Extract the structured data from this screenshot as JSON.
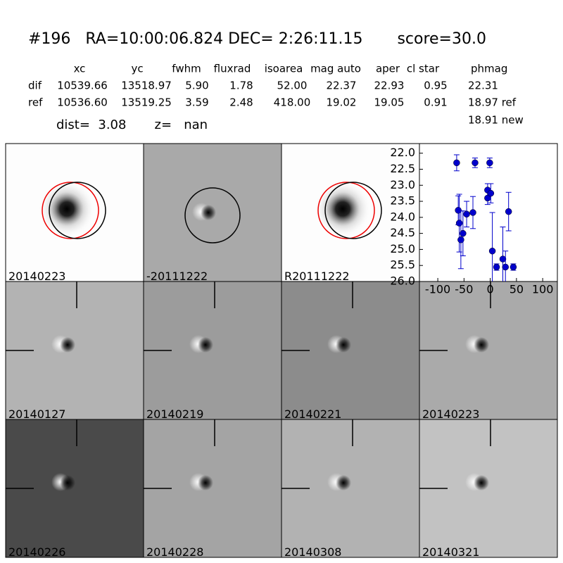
{
  "header": {
    "title": "#196   RA=10:00:06.824 DEC= 2:26:11.15       score=30.0"
  },
  "table": {
    "columns": [
      "xc",
      "yc",
      "fwhm",
      "fluxrad",
      "isoarea",
      "mag auto",
      "aper",
      "cl star",
      "phmag"
    ],
    "rows": [
      [
        "dif",
        "10539.66",
        "13518.97",
        "5.90",
        "1.78",
        "52.00",
        "22.37",
        "22.93",
        "0.95",
        "22.31"
      ],
      [
        "ref",
        "10536.60",
        "13519.25",
        "3.59",
        "2.48",
        "418.00",
        "19.02",
        "19.05",
        "0.91",
        "18.97 ref"
      ]
    ],
    "note": "18.91 new"
  },
  "summary": "dist=  3.08       z=   nan",
  "panels": [
    {
      "label": "20140223"
    },
    {
      "label": "-20111222"
    },
    {
      "label": "R20111222"
    },
    {
      "label": "20140127"
    },
    {
      "label": "20140219"
    },
    {
      "label": "20140221"
    },
    {
      "label": "20140223"
    },
    {
      "label": "20140226"
    },
    {
      "label": "20140228"
    },
    {
      "label": "20140308"
    },
    {
      "label": "20140321"
    }
  ],
  "chart_data": {
    "type": "scatter",
    "color": "#0000cc",
    "y_inverted": true,
    "x": [
      -64,
      -29,
      -1,
      -61,
      -59,
      -56,
      -52,
      -45,
      -33,
      -5,
      -5,
      1,
      35,
      4,
      12,
      24,
      29,
      44
    ],
    "values": [
      22.3,
      22.3,
      22.3,
      23.78,
      24.18,
      24.7,
      24.5,
      23.9,
      23.85,
      23.15,
      23.4,
      23.25,
      23.82,
      25.05,
      25.55,
      25.3,
      25.55,
      25.55
    ],
    "errors": [
      0.25,
      0.15,
      0.15,
      0.45,
      0.9,
      0.9,
      0.7,
      0.4,
      0.5,
      0.2,
      0.2,
      0.3,
      0.6,
      1.2,
      0.1,
      1.0,
      0.5,
      0.1
    ],
    "xlim": [
      -135,
      128
    ],
    "ylim": [
      21.7,
      26.0
    ],
    "xticks": [
      -100,
      -50,
      0,
      50,
      100
    ],
    "yticks": [
      {
        "value": 22,
        "label": "22.0"
      },
      {
        "value": 22.5,
        "label": "22.5"
      },
      {
        "value": 23,
        "label": "23.0"
      },
      {
        "value": 23.5,
        "label": "23.5"
      },
      {
        "value": 24,
        "label": "24.0"
      },
      {
        "value": 24.5,
        "label": "24.5"
      },
      {
        "value": 25,
        "label": "25.0"
      },
      {
        "value": 25.5,
        "label": "25.5"
      },
      {
        "value": 26,
        "label": "26.0"
      }
    ]
  }
}
